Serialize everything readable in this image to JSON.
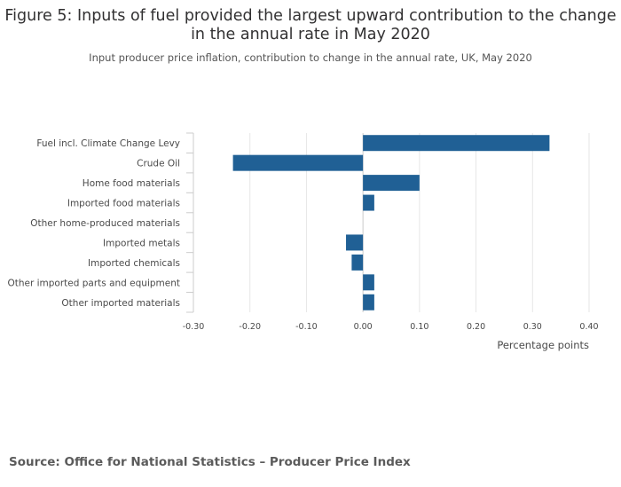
{
  "header": {
    "title": "Figure 5: Inputs of fuel provided the largest upward contribution to the change in the annual rate in May 2020",
    "subtitle": "Input producer price inflation, contribution to change in the annual rate, UK, May 2020"
  },
  "footer": {
    "source": "Source: Office for National Statistics – Producer Price Index"
  },
  "colors": {
    "bar": "#206095",
    "grid": "#e6e6e6",
    "zero_line": "#cccccc"
  },
  "chart_data": {
    "type": "bar",
    "orientation": "horizontal",
    "title": "Figure 5: Inputs of fuel provided the largest upward contribution to the change in the annual rate in May 2020",
    "subtitle": "Input producer price inflation, contribution to change in the annual rate, UK, May 2020",
    "categories": [
      "Fuel incl. Climate Change Levy",
      "Crude Oil",
      "Home food materials",
      "Imported food materials",
      "Other home-produced materials",
      "Imported metals",
      "Imported chemicals",
      "Other imported parts and equipment",
      "Other imported materials"
    ],
    "values": [
      0.33,
      -0.23,
      0.1,
      0.02,
      0.0,
      -0.03,
      -0.02,
      0.02,
      0.02
    ],
    "xlabel": "Percentage points",
    "ylabel": "",
    "xlim": [
      -0.3,
      0.4
    ],
    "xticks": [
      -0.3,
      -0.2,
      -0.1,
      0.0,
      0.1,
      0.2,
      0.3,
      0.4
    ],
    "xtick_labels": [
      "-0.30",
      "-0.20",
      "-0.10",
      "0.00",
      "0.10",
      "0.20",
      "0.30",
      "0.40"
    ],
    "grid": true
  }
}
